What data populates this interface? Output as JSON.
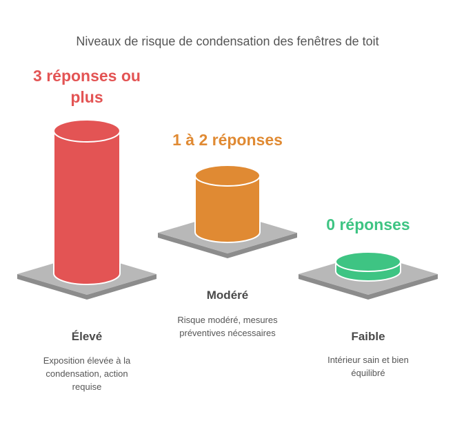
{
  "title": "Niveaux de risque de condensation des fenêtres de toit",
  "levels": [
    {
      "count": "3 réponses ou plus",
      "label": "Élevé",
      "description": "Exposition élevée à la condensation, action requise",
      "color": "#e35454"
    },
    {
      "count": "1 à 2 réponses",
      "label": "Modéré",
      "description": "Risque modéré, mesures préventives nécessaires",
      "color": "#e08a33"
    },
    {
      "count": "0 réponses",
      "label": "Faible",
      "description": "Intérieur sain et bien équilibré",
      "color": "#3ec483"
    }
  ],
  "colors": {
    "base_top": "#b8b8b8",
    "base_side": "#8c8c8c",
    "text": "#4a4a4a"
  }
}
